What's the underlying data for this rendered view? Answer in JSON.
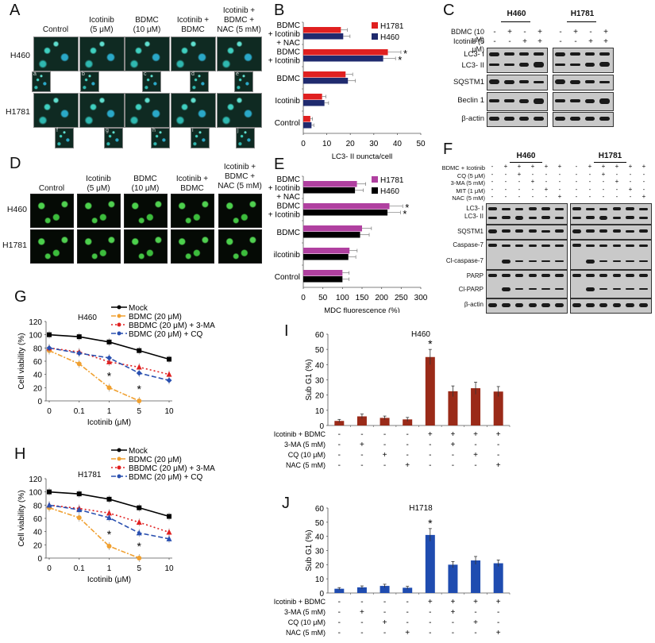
{
  "panels": {
    "A": {
      "label": "A",
      "columns": [
        "Control",
        "Icotinib\n(5 μM)",
        "BDMC\n(10 μM)",
        "Icotinib +\nBDMC",
        "Icotinib +\nBDMC +\nNAC (5 mM)"
      ],
      "rows": [
        "H460",
        "H1781"
      ],
      "insets_h460": [
        "a",
        "b",
        "c",
        "d",
        "e"
      ],
      "insets_h1781": [
        "f",
        "g",
        "h",
        "i",
        "j"
      ]
    },
    "B": {
      "label": "B"
    },
    "C": {
      "label": "C",
      "cell_lines": [
        "H460",
        "H1781"
      ],
      "treatments": [
        {
          "name": "BDMC (10 μM)",
          "signs": [
            "-",
            "+",
            "-",
            "+"
          ]
        },
        {
          "name": "Icotinib (5 μM)",
          "signs": [
            "-",
            "-",
            "+",
            "+"
          ]
        }
      ],
      "blots": [
        "LC3- I",
        "LC3- II",
        "SQSTM1",
        "Beclin 1",
        "β-actin"
      ]
    },
    "D": {
      "label": "D",
      "columns": [
        "Control",
        "Icotinib\n(5 μM)",
        "BDMC\n(10 μM)",
        "Icotinib +\nBDMC",
        "Icotinib +\nBDMC +\nNAC (5 mM)"
      ],
      "rows": [
        "H460",
        "H1781"
      ]
    },
    "E": {
      "label": "E"
    },
    "F": {
      "label": "F",
      "cell_lines": [
        "H460",
        "H1781"
      ],
      "treatments": [
        {
          "name": "BDMC + Icotinib",
          "signs": [
            "-",
            "+",
            "+",
            "+",
            "+",
            "+"
          ]
        },
        {
          "name": "CQ (5 μM)",
          "signs": [
            "-",
            "-",
            "+",
            "-",
            "-",
            "-"
          ]
        },
        {
          "name": "3-MA (5 mM)",
          "signs": [
            "-",
            "-",
            "-",
            "+",
            "-",
            "-"
          ]
        },
        {
          "name": "MIT (1 μM)",
          "signs": [
            "-",
            "-",
            "-",
            "-",
            "+",
            "-"
          ]
        },
        {
          "name": "NAC (5 mM)",
          "signs": [
            "-",
            "-",
            "-",
            "-",
            "-",
            "+"
          ]
        }
      ],
      "blots": [
        "LC3- I",
        "LC3- II",
        "SQSTM1",
        "Caspase-7",
        "Cl-caspase-7",
        "PARP",
        "Cl-PARP",
        "β-actin"
      ]
    },
    "G": {
      "label": "G"
    },
    "H": {
      "label": "H"
    },
    "I": {
      "label": "I"
    },
    "J": {
      "label": "J"
    }
  },
  "chart_data": [
    {
      "panel": "B",
      "type": "bar",
      "orientation": "horizontal",
      "categories": [
        "BDMC + Icotinib + NAC",
        "BDMC + Icotinib",
        "BDMC",
        "Icotinib",
        "Control"
      ],
      "series": [
        {
          "name": "H1781",
          "color": "#e02020",
          "values": [
            16,
            36,
            18,
            8,
            3
          ]
        },
        {
          "name": "H460",
          "color": "#1f2a6e",
          "values": [
            17,
            34,
            19,
            9,
            3.5
          ]
        }
      ],
      "significance": [
        "",
        "*",
        "",
        "",
        ""
      ],
      "xlabel": "LC3- II puncta/cell",
      "xticks": [
        0,
        10,
        20,
        30,
        40,
        50
      ],
      "xlim": [
        0,
        50
      ],
      "legend_position": "top-right"
    },
    {
      "panel": "E",
      "type": "bar",
      "orientation": "horizontal",
      "categories": [
        "BDMC + Icotinib + NAC",
        "BDMC + Icotinib",
        "BDMC",
        "ilcotinib",
        "Control"
      ],
      "series": [
        {
          "name": "H1781",
          "color": "#b040a0",
          "values": [
            137,
            220,
            150,
            118,
            100
          ]
        },
        {
          "name": "H460",
          "color": "#000000",
          "values": [
            132,
            215,
            145,
            115,
            100
          ]
        }
      ],
      "significance": [
        "",
        "*",
        "",
        "",
        ""
      ],
      "xlabel": "MDC fluorescence (%)",
      "xticks": [
        0,
        50,
        100,
        150,
        200,
        250,
        300
      ],
      "xlim": [
        0,
        300
      ],
      "legend_position": "top-right"
    },
    {
      "panel": "G",
      "type": "line",
      "title": "H460",
      "x": [
        "0",
        "0.1",
        "1",
        "5",
        "10"
      ],
      "series": [
        {
          "name": "Mock",
          "color": "#000000",
          "marker": "square",
          "values": [
            100,
            97,
            89,
            76,
            63
          ]
        },
        {
          "name": "BDMC (20 μM)",
          "color": "#f0a030",
          "marker": "circle",
          "values": [
            76,
            56,
            20,
            0,
            null
          ]
        },
        {
          "name": "BBDMC (20 μM) + 3-MA",
          "color": "#e02020",
          "marker": "triangle",
          "values": [
            80,
            74,
            59,
            51,
            40
          ]
        },
        {
          "name": "BDMC (20 μM) + CQ",
          "color": "#2a50b0",
          "marker": "diamond",
          "values": [
            80,
            72,
            65,
            42,
            31
          ]
        }
      ],
      "annotations": [
        {
          "x": "1",
          "text": "*"
        },
        {
          "x": "5",
          "text": "*"
        }
      ],
      "xlabel": "Icotinib (μM)",
      "ylabel": "Cell viability (%)",
      "yticks": [
        0,
        20,
        40,
        60,
        80,
        100,
        120
      ],
      "ylim": [
        0,
        120
      ]
    },
    {
      "panel": "H",
      "type": "line",
      "title": "H1781",
      "x": [
        "0",
        "0.1",
        "1",
        "5",
        "10"
      ],
      "series": [
        {
          "name": "Mock",
          "color": "#000000",
          "marker": "square",
          "values": [
            100,
            97,
            89,
            76,
            63
          ]
        },
        {
          "name": "BDMC (20 μM)",
          "color": "#f0a030",
          "marker": "circle",
          "values": [
            76,
            61,
            18,
            0,
            null
          ]
        },
        {
          "name": "BBDMC (20 μM) + 3-MA",
          "color": "#e02020",
          "marker": "triangle",
          "values": [
            80,
            75,
            68,
            54,
            39
          ]
        },
        {
          "name": "BDMC (20 μM) + CQ",
          "color": "#2a50b0",
          "marker": "triangle",
          "values": [
            80,
            73,
            61,
            38,
            29
          ]
        }
      ],
      "annotations": [
        {
          "x": "1",
          "text": "*"
        },
        {
          "x": "5",
          "text": "*"
        }
      ],
      "xlabel": "Icotinib (μM)",
      "ylabel": "Cell viability (%)",
      "yticks": [
        0,
        20,
        40,
        60,
        80,
        100,
        120
      ],
      "ylim": [
        0,
        120
      ]
    },
    {
      "panel": "I",
      "type": "bar",
      "title": "H460",
      "color": "#9a2a18",
      "values": [
        3,
        6,
        5,
        4,
        45,
        22.5,
        24.5,
        22.3
      ],
      "errors": [
        1,
        1.5,
        1.2,
        1.3,
        5,
        3.5,
        4,
        3.3
      ],
      "significance": [
        "",
        "",
        "",
        "",
        "*",
        "",
        "",
        ""
      ],
      "ylabel": "Sub G1 (%)",
      "yticks": [
        0,
        10,
        20,
        30,
        40,
        50,
        60
      ],
      "ylim": [
        0,
        60
      ],
      "conditions": [
        {
          "name": "Icotinib + BDMC",
          "signs": [
            "-",
            "-",
            "-",
            "-",
            "+",
            "+",
            "+",
            "+"
          ]
        },
        {
          "name": "3-MA (5 mM)",
          "signs": [
            "-",
            "+",
            "-",
            "-",
            "-",
            "+",
            "-",
            "-"
          ]
        },
        {
          "name": "CQ (10 μM)",
          "signs": [
            "-",
            "-",
            "+",
            "-",
            "-",
            "-",
            "+",
            "-"
          ]
        },
        {
          "name": "NAC (5 mM)",
          "signs": [
            "-",
            "-",
            "-",
            "+",
            "-",
            "-",
            "-",
            "+"
          ]
        }
      ]
    },
    {
      "panel": "J",
      "type": "bar",
      "title": "H1718",
      "color": "#1f4cb0",
      "values": [
        3,
        4,
        5,
        3.7,
        41,
        20,
        23,
        21
      ],
      "errors": [
        0.8,
        1,
        1.2,
        1,
        4.5,
        2.2,
        2.8,
        2.3
      ],
      "significance": [
        "",
        "",
        "",
        "",
        "*",
        "",
        "",
        ""
      ],
      "ylabel": "Sub G1 (%)",
      "yticks": [
        0,
        10,
        20,
        30,
        40,
        50,
        60
      ],
      "ylim": [
        0,
        60
      ],
      "conditions": [
        {
          "name": "Icotinib + BDMC",
          "signs": [
            "-",
            "-",
            "-",
            "-",
            "+",
            "+",
            "+",
            "+"
          ]
        },
        {
          "name": "3-MA (5 mM)",
          "signs": [
            "-",
            "+",
            "-",
            "-",
            "-",
            "+",
            "-",
            "-"
          ]
        },
        {
          "name": "CQ (10 μM)",
          "signs": [
            "-",
            "-",
            "+",
            "-",
            "-",
            "-",
            "+",
            "-"
          ]
        },
        {
          "name": "NAC (5 mM)",
          "signs": [
            "-",
            "-",
            "-",
            "+",
            "-",
            "-",
            "-",
            "+"
          ]
        }
      ]
    }
  ]
}
